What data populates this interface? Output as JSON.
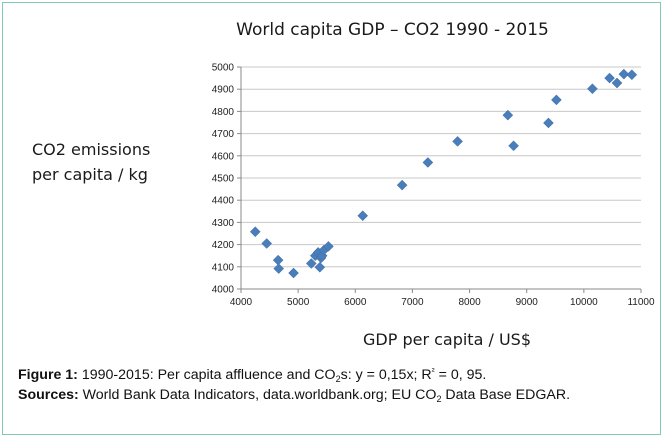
{
  "chart_data": {
    "type": "scatter",
    "title": "World capita GDP – CO2 1990 - 2015",
    "xlabel": "GDP per capita / US$",
    "ylabel_line1": "CO2 emissions",
    "ylabel_line2": "per capita / kg",
    "xlim": [
      4000,
      11000
    ],
    "ylim": [
      4000,
      5000
    ],
    "x_ticks": [
      4000,
      5000,
      6000,
      7000,
      8000,
      9000,
      10000,
      11000
    ],
    "y_ticks": [
      4000,
      4100,
      4200,
      4300,
      4400,
      4500,
      4600,
      4700,
      4800,
      4900,
      5000
    ],
    "grid": "horizontal",
    "legend": "none",
    "marker": "diamond",
    "marker_color": "#4a7ebb",
    "points": [
      {
        "x": 4250,
        "y": 4258
      },
      {
        "x": 4450,
        "y": 4205
      },
      {
        "x": 4650,
        "y": 4130
      },
      {
        "x": 4660,
        "y": 4092
      },
      {
        "x": 4920,
        "y": 4072
      },
      {
        "x": 5230,
        "y": 4115
      },
      {
        "x": 5300,
        "y": 4150
      },
      {
        "x": 5350,
        "y": 4165
      },
      {
        "x": 5380,
        "y": 4098
      },
      {
        "x": 5400,
        "y": 4140
      },
      {
        "x": 5420,
        "y": 4150
      },
      {
        "x": 5450,
        "y": 4175
      },
      {
        "x": 5530,
        "y": 4192
      },
      {
        "x": 6130,
        "y": 4330
      },
      {
        "x": 6820,
        "y": 4468
      },
      {
        "x": 7270,
        "y": 4570
      },
      {
        "x": 7790,
        "y": 4665
      },
      {
        "x": 8670,
        "y": 4783
      },
      {
        "x": 8770,
        "y": 4645
      },
      {
        "x": 9380,
        "y": 4748
      },
      {
        "x": 9520,
        "y": 4852
      },
      {
        "x": 10150,
        "y": 4902
      },
      {
        "x": 10450,
        "y": 4950
      },
      {
        "x": 10580,
        "y": 4928
      },
      {
        "x": 10700,
        "y": 4968
      },
      {
        "x": 10840,
        "y": 4965
      }
    ]
  },
  "caption": {
    "figure_label": "Figure 1:",
    "figure_text_a": " 1990-2015: Per capita affluence and CO",
    "figure_sub": "2",
    "figure_text_b": "s: y = 0,15x; R",
    "figure_sup": "²",
    "figure_text_c": " = 0, 95.",
    "sources_label": "Sources:",
    "sources_text_a": "  World Bank Data Indicators, data.worldbank.org; EU CO",
    "sources_sub": "2",
    "sources_text_b": " Data Base EDGAR."
  }
}
